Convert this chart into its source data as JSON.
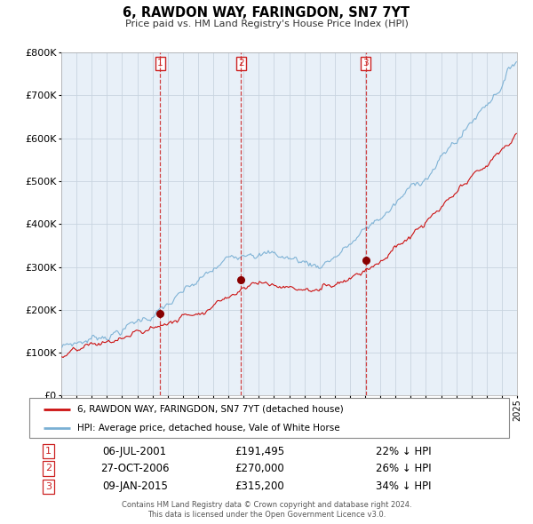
{
  "title": "6, RAWDON WAY, FARINGDON, SN7 7YT",
  "subtitle": "Price paid vs. HM Land Registry's House Price Index (HPI)",
  "legend_line1": "6, RAWDON WAY, FARINGDON, SN7 7YT (detached house)",
  "legend_line2": "HPI: Average price, detached house, Vale of White Horse",
  "sale_dates_display": [
    "06-JUL-2001",
    "27-OCT-2006",
    "09-JAN-2015"
  ],
  "sale_prices_display": [
    "£191,495",
    "£270,000",
    "£315,200"
  ],
  "sale_pct_display": [
    "22% ↓ HPI",
    "26% ↓ HPI",
    "34% ↓ HPI"
  ],
  "sale_times": [
    2001.51,
    2006.82,
    2015.03
  ],
  "sale_prices": [
    191495,
    270000,
    315200
  ],
  "footer_line1": "Contains HM Land Registry data © Crown copyright and database right 2024.",
  "footer_line2": "This data is licensed under the Open Government Licence v3.0.",
  "hpi_color": "#7ab0d4",
  "price_color": "#cc1111",
  "sale_marker_color": "#880000",
  "vline_color": "#cc2222",
  "plot_bg": "#e8f0f8",
  "grid_color": "#c8d4e0",
  "ylim": [
    0,
    800000
  ],
  "year_start": 1995,
  "year_end": 2025
}
